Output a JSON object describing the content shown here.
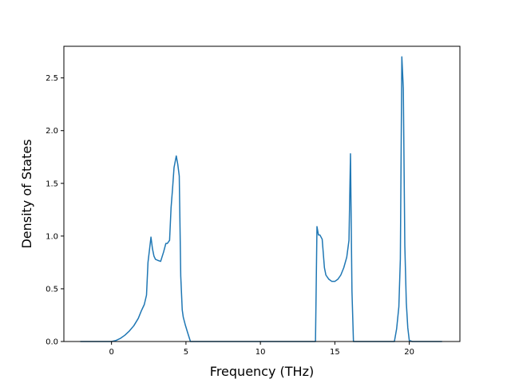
{
  "chart_data": {
    "type": "line",
    "title": "",
    "xlabel": "Frequency (THz)",
    "ylabel": "Density of States",
    "xlim": [
      -3.2,
      23.4
    ],
    "ylim": [
      0,
      2.8
    ],
    "xticks": [
      0,
      5,
      10,
      15,
      20
    ],
    "yticks": [
      0.0,
      0.5,
      1.0,
      1.5,
      2.0,
      2.5
    ],
    "xtick_labels": [
      "0",
      "5",
      "10",
      "15",
      "20"
    ],
    "ytick_labels": [
      "0.0",
      "0.5",
      "1.0",
      "1.5",
      "2.0",
      "2.5"
    ],
    "grid": false,
    "legend": "none",
    "series": [
      {
        "color": "#1f77b4",
        "x": [
          -2.1,
          -1.0,
          0.0,
          0.3,
          0.6,
          0.9,
          1.2,
          1.5,
          1.8,
          2.0,
          2.2,
          2.35,
          2.45,
          2.55,
          2.65,
          2.75,
          2.85,
          2.95,
          3.1,
          3.3,
          3.5,
          3.65,
          3.75,
          3.9,
          4.0,
          4.1,
          4.2,
          4.35,
          4.45,
          4.55,
          4.65,
          4.75,
          4.82,
          4.95,
          5.1,
          5.3,
          5.5,
          5.6,
          5.8,
          8.0,
          10.0,
          12.0,
          13.7,
          13.8,
          13.9,
          14.0,
          14.15,
          14.3,
          14.4,
          14.6,
          14.8,
          15.0,
          15.2,
          15.4,
          15.6,
          15.8,
          15.95,
          16.05,
          16.15,
          16.25,
          16.4,
          17.0,
          18.0,
          19.0,
          19.15,
          19.3,
          19.4,
          19.5,
          19.6,
          19.7,
          19.8,
          19.9,
          20.0,
          20.2,
          20.5,
          22.2
        ],
        "y": [
          0.0,
          0.0,
          0.0,
          0.01,
          0.03,
          0.06,
          0.1,
          0.15,
          0.22,
          0.29,
          0.35,
          0.44,
          0.75,
          0.87,
          0.99,
          0.88,
          0.81,
          0.78,
          0.77,
          0.76,
          0.85,
          0.93,
          0.93,
          0.96,
          1.27,
          1.45,
          1.65,
          1.76,
          1.68,
          1.57,
          0.62,
          0.3,
          0.23,
          0.16,
          0.09,
          0.0,
          0.0,
          0.0,
          0.0,
          0.0,
          0.0,
          0.0,
          0.0,
          1.09,
          1.01,
          1.01,
          0.97,
          0.7,
          0.63,
          0.59,
          0.57,
          0.57,
          0.59,
          0.63,
          0.7,
          0.8,
          0.96,
          1.78,
          0.48,
          0.0,
          0.0,
          0.0,
          0.0,
          0.0,
          0.12,
          0.33,
          0.78,
          2.7,
          2.4,
          0.91,
          0.37,
          0.13,
          0.01,
          0.0,
          0.0,
          0.0
        ]
      }
    ]
  }
}
